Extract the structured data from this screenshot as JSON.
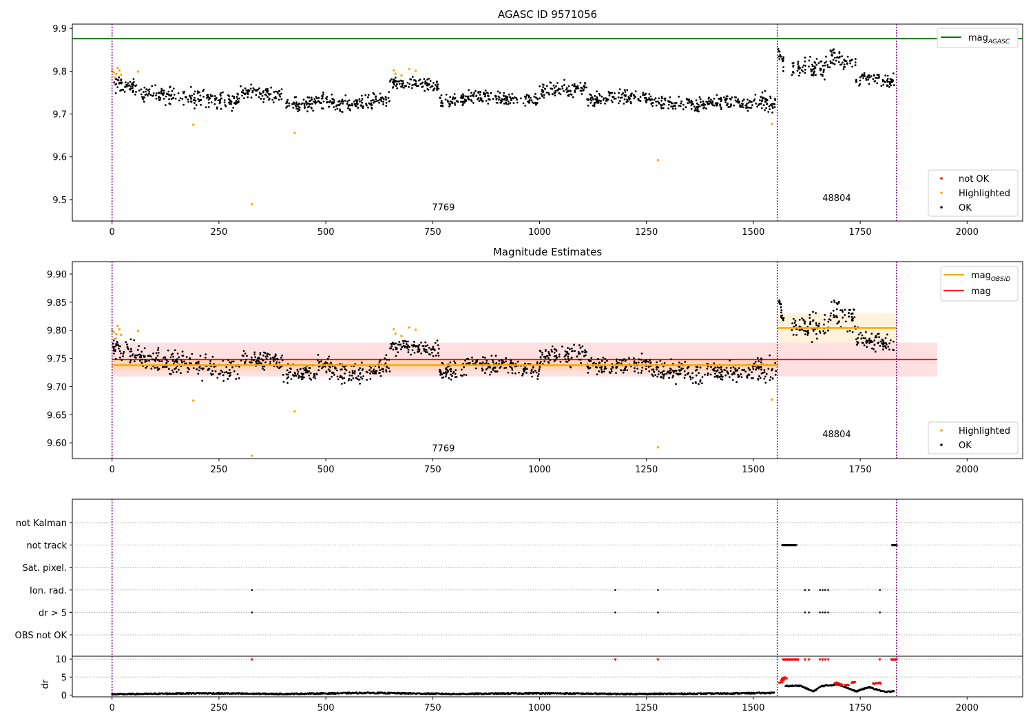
{
  "chart_data": [
    {
      "type": "scatter",
      "title": "AGASC ID 9571056",
      "xlim": [
        -93,
        2130
      ],
      "ylim": [
        9.45,
        9.91
      ],
      "xticks": [
        0,
        250,
        500,
        750,
        1000,
        1250,
        1500,
        1750,
        2000
      ],
      "yticks": [
        9.5,
        9.6,
        9.7,
        9.8,
        9.9
      ],
      "ytick_labels": [
        "9.5",
        "9.6",
        "9.7",
        "9.8",
        "9.9"
      ],
      "obs_boundaries": [
        0,
        1556,
        1835
      ],
      "obs_labels": [
        {
          "text": "7769",
          "x": 775,
          "y": 9.475
        },
        {
          "text": "48804",
          "x": 1695,
          "y": 9.497
        }
      ],
      "lines": [
        {
          "name": "mag_AGASC",
          "y": 9.876,
          "x_range": [
            -93,
            2130
          ],
          "color": "#008000"
        }
      ],
      "highlighted": [
        [
          0,
          9.8
        ],
        [
          4,
          9.797
        ],
        [
          7,
          9.785
        ],
        [
          10,
          9.793
        ],
        [
          13,
          9.808
        ],
        [
          17,
          9.802
        ],
        [
          21,
          9.792
        ],
        [
          61,
          9.799
        ],
        [
          190,
          9.675
        ],
        [
          327,
          9.489
        ],
        [
          427,
          9.656
        ],
        [
          659,
          9.802
        ],
        [
          663,
          9.794
        ],
        [
          677,
          9.79
        ],
        [
          695,
          9.805
        ],
        [
          710,
          9.801
        ],
        [
          1277,
          9.592
        ],
        [
          1544,
          9.677
        ]
      ],
      "ok_segments": [
        {
          "x0": 2,
          "x1": 70,
          "y0": 9.77,
          "y1": 9.758,
          "spread": 0.018
        },
        {
          "x0": 70,
          "x1": 300,
          "y0": 9.75,
          "y1": 9.728,
          "spread": 0.02
        },
        {
          "x0": 300,
          "x1": 400,
          "y0": 9.752,
          "y1": 9.745,
          "spread": 0.016
        },
        {
          "x0": 400,
          "x1": 480,
          "y0": 9.723,
          "y1": 9.725,
          "spread": 0.016
        },
        {
          "x0": 480,
          "x1": 560,
          "y0": 9.735,
          "y1": 9.72,
          "spread": 0.018
        },
        {
          "x0": 560,
          "x1": 650,
          "y0": 9.72,
          "y1": 9.738,
          "spread": 0.016
        },
        {
          "x0": 650,
          "x1": 765,
          "y0": 9.772,
          "y1": 9.765,
          "spread": 0.014
        },
        {
          "x0": 765,
          "x1": 830,
          "y0": 9.725,
          "y1": 9.735,
          "spread": 0.016
        },
        {
          "x0": 830,
          "x1": 1000,
          "y0": 9.742,
          "y1": 9.73,
          "spread": 0.016
        },
        {
          "x0": 1000,
          "x1": 1110,
          "y0": 9.752,
          "y1": 9.76,
          "spread": 0.018
        },
        {
          "x0": 1110,
          "x1": 1260,
          "y0": 9.735,
          "y1": 9.74,
          "spread": 0.016
        },
        {
          "x0": 1260,
          "x1": 1390,
          "y0": 9.73,
          "y1": 9.722,
          "spread": 0.018
        },
        {
          "x0": 1390,
          "x1": 1500,
          "y0": 9.728,
          "y1": 9.724,
          "spread": 0.016
        },
        {
          "x0": 1500,
          "x1": 1553,
          "y0": 9.735,
          "y1": 9.72,
          "spread": 0.024
        },
        {
          "x0": 1558,
          "x1": 1572,
          "y0": 9.845,
          "y1": 9.82,
          "spread": 0.02
        },
        {
          "x0": 1590,
          "x1": 1680,
          "y0": 9.805,
          "y1": 9.81,
          "spread": 0.022
        },
        {
          "x0": 1680,
          "x1": 1740,
          "y0": 9.835,
          "y1": 9.82,
          "spread": 0.024
        },
        {
          "x0": 1740,
          "x1": 1830,
          "y0": 9.785,
          "y1": 9.775,
          "spread": 0.016
        }
      ],
      "legend_lines": [
        "mag",
        "AGASC"
      ],
      "legend_points": [
        "not OK",
        "Highlighted",
        "OK"
      ],
      "legend_line_position": "upper right",
      "legend_point_position": "lower right",
      "colors": {
        "not_ok": "#ff0000",
        "highlighted": "#ffa500",
        "ok": "#000000",
        "boundary": "#800080"
      }
    },
    {
      "type": "scatter",
      "title": "Magnitude Estimates",
      "xlim": [
        -93,
        2130
      ],
      "ylim": [
        9.572,
        9.922
      ],
      "xticks": [
        0,
        250,
        500,
        750,
        1000,
        1250,
        1500,
        1750,
        2000
      ],
      "yticks": [
        9.6,
        9.65,
        9.7,
        9.75,
        9.8,
        9.85,
        9.9
      ],
      "ytick_labels": [
        "9.60",
        "9.65",
        "9.70",
        "9.75",
        "9.80",
        "9.85",
        "9.90"
      ],
      "obs_boundaries": [
        0,
        1556,
        1835
      ],
      "obs_labels": [
        {
          "text": "7769",
          "x": 775,
          "y": 9.585
        },
        {
          "text": "48804",
          "x": 1695,
          "y": 9.61
        }
      ],
      "lines": [
        {
          "name": "mag",
          "y": 9.748,
          "x_range": [
            0,
            1930
          ],
          "color": "#ff0000",
          "band": [
            9.718,
            9.778
          ]
        },
        {
          "name": "mag_OBSID",
          "y": 9.738,
          "x_range": [
            0,
            1556
          ],
          "color": "#ffa500",
          "band": [
            9.728,
            9.748
          ]
        },
        {
          "name": "mag_OBSID",
          "y": 9.804,
          "x_range": [
            1556,
            1835
          ],
          "color": "#ffa500",
          "band": [
            9.778,
            9.83
          ]
        }
      ],
      "highlighted": [
        [
          0,
          9.8
        ],
        [
          4,
          9.797
        ],
        [
          7,
          9.785
        ],
        [
          10,
          9.793
        ],
        [
          13,
          9.808
        ],
        [
          17,
          9.802
        ],
        [
          21,
          9.792
        ],
        [
          61,
          9.799
        ],
        [
          190,
          9.675
        ],
        [
          327,
          9.577
        ],
        [
          427,
          9.656
        ],
        [
          659,
          9.802
        ],
        [
          663,
          9.794
        ],
        [
          677,
          9.79
        ],
        [
          695,
          9.805
        ],
        [
          710,
          9.801
        ],
        [
          1277,
          9.592
        ],
        [
          1544,
          9.677
        ]
      ],
      "ok_segments": "same as first panel",
      "legend_lines": [
        "mag",
        "OBSID",
        "mag"
      ],
      "legend_points": [
        "Highlighted",
        "OK"
      ],
      "legend_line_position": "upper right",
      "legend_point_position": "lower right"
    },
    {
      "type": "scatter",
      "title": "",
      "ytick_labels": [
        "not Kalman",
        "not track",
        "Sat. pixel.",
        "Ion. rad.",
        "dr > 5",
        "OBS not OK"
      ],
      "xticks": [
        0,
        250,
        500,
        750,
        1000,
        1250,
        1500,
        1750,
        2000
      ],
      "flags": {
        "not track": [
          [
            1568,
            1602
          ],
          [
            1825,
            1836
          ]
        ],
        "Ion. rad.": [
          327,
          1177,
          1277,
          1621,
          1630,
          1656,
          1662,
          1668,
          1675,
          1796
        ],
        "dr > 5": [
          327,
          1177,
          1277,
          1621,
          1630,
          1656,
          1662,
          1668,
          1675,
          1796
        ]
      },
      "obs_boundaries": [
        0,
        1556,
        1835
      ]
    },
    {
      "type": "scatter",
      "ylabel": "dr",
      "ylim": [
        -0.5,
        10.8
      ],
      "yticks": [
        0,
        5,
        10
      ],
      "ytick_labels": [
        "0",
        "5",
        "10"
      ],
      "xticks": [
        0,
        250,
        500,
        750,
        1000,
        1250,
        1500,
        1750,
        2000
      ],
      "xtick_labels": [
        "0",
        "250",
        "500",
        "750",
        "1000",
        "1250",
        "1500",
        "1750",
        "2000"
      ],
      "dr_series": [
        [
          0,
          0.2
        ],
        [
          200,
          0.5
        ],
        [
          400,
          0.3
        ],
        [
          600,
          0.6
        ],
        [
          800,
          0.3
        ],
        [
          1000,
          0.5
        ],
        [
          1200,
          0.3
        ],
        [
          1400,
          0.4
        ],
        [
          1550,
          0.6
        ],
        [
          1575,
          2.5
        ],
        [
          1610,
          2.6
        ],
        [
          1640,
          1.0
        ],
        [
          1660,
          2.5
        ],
        [
          1700,
          3.0
        ],
        [
          1740,
          1.0
        ],
        [
          1770,
          2.2
        ],
        [
          1810,
          0.8
        ],
        [
          1830,
          1.2
        ]
      ],
      "dr_red": [
        [
          1560,
          3.5
        ],
        [
          1565,
          4.3
        ],
        [
          1570,
          4.8
        ],
        [
          1690,
          3.3
        ],
        [
          1700,
          3.0
        ],
        [
          1715,
          2.9
        ],
        [
          1730,
          3.5
        ],
        [
          1780,
          3.2
        ],
        [
          1790,
          3.3
        ]
      ],
      "dr_capped": [
        327,
        1177,
        1277,
        [
          1570,
          1605
        ],
        1621,
        1630,
        1656,
        1662,
        1668,
        1675,
        1796,
        [
          1823,
          1836
        ]
      ],
      "obs_boundaries": [
        0,
        1556,
        1835
      ]
    }
  ]
}
